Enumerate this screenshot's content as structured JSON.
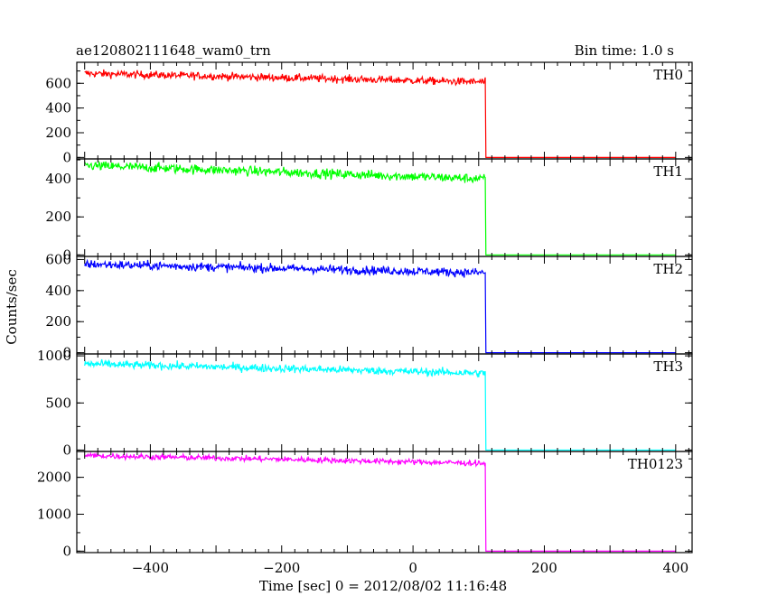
{
  "header": {
    "title": "ae120802111648_wam0_trn",
    "bin_time": "Bin time: 1.0 s"
  },
  "chart_data": {
    "type": "line",
    "xlabel": "Time [sec] 0 = 2012/08/02 11:16:48",
    "ylabel": "Counts/sec",
    "xlim": [
      -512,
      425
    ],
    "x_ticks": [
      -400,
      -200,
      0,
      200,
      400
    ],
    "series": [
      {
        "name": "TH0",
        "color": "#ff0000",
        "ylim": [
          -12,
          770
        ],
        "y_ticks": [
          0,
          200,
          400,
          600
        ],
        "start": 680,
        "end": 610,
        "noise": 22,
        "drop_x": 110,
        "after": 0
      },
      {
        "name": "TH1",
        "color": "#00ff00",
        "ylim": [
          -8,
          505
        ],
        "y_ticks": [
          0,
          200,
          400
        ],
        "start": 470,
        "end": 400,
        "noise": 18,
        "drop_x": 110,
        "after": 0
      },
      {
        "name": "TH2",
        "color": "#0000ff",
        "ylim": [
          -8,
          620
        ],
        "y_ticks": [
          0,
          200,
          400,
          600
        ],
        "start": 570,
        "end": 515,
        "noise": 20,
        "drop_x": 110,
        "after": 0
      },
      {
        "name": "TH3",
        "color": "#00ffff",
        "ylim": [
          -15,
          1020
        ],
        "y_ticks": [
          0,
          500,
          1000
        ],
        "start": 915,
        "end": 815,
        "noise": 30,
        "drop_x": 110,
        "after": 0
      },
      {
        "name": "TH0123",
        "color": "#ff00ff",
        "ylim": [
          -40,
          2700
        ],
        "y_ticks": [
          0,
          1000,
          2000
        ],
        "start": 2590,
        "end": 2380,
        "noise": 55,
        "drop_x": 110,
        "after": 0
      }
    ]
  }
}
